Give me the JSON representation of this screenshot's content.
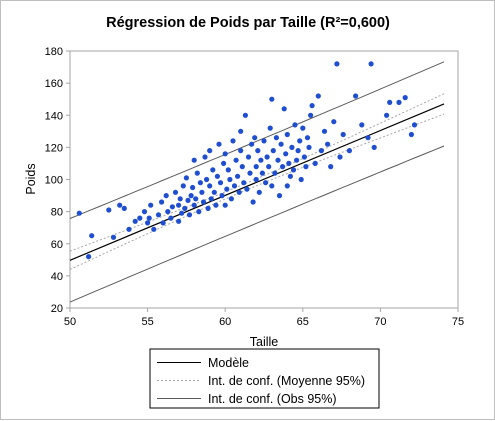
{
  "chart_data": {
    "type": "scatter",
    "title": "Régression de Poids par Taille (R²=0,600)",
    "xlabel": "Taille",
    "ylabel": "Poids",
    "xlim": [
      50,
      75
    ],
    "ylim": [
      20,
      180
    ],
    "xticks": [
      "50",
      "55",
      "60",
      "65",
      "70",
      "75"
    ],
    "yticks": [
      "20",
      "40",
      "60",
      "80",
      "100",
      "120",
      "140",
      "160",
      "180"
    ],
    "grid": false,
    "legend_position": "bottom",
    "colors": {
      "points": "#1f4fd0",
      "model": "#000000",
      "ci_mean": "#a6a6a6",
      "ci_obs": "#595959"
    },
    "model": {
      "intercept": -152.3,
      "slope": 4.04
    },
    "series": [
      {
        "name": "Points",
        "x": [
          50.6,
          51.2,
          51.4,
          52.5,
          52.8,
          53.2,
          53.5,
          53.8,
          54.2,
          54.5,
          54.8,
          55.0,
          55.1,
          55.2,
          55.4,
          55.7,
          55.9,
          56.0,
          56.2,
          56.3,
          56.5,
          56.6,
          56.8,
          57.0,
          57.0,
          57.1,
          57.2,
          57.3,
          57.4,
          57.5,
          57.6,
          57.7,
          57.8,
          57.9,
          58.0,
          58.0,
          58.1,
          58.2,
          58.3,
          58.4,
          58.5,
          58.6,
          58.7,
          58.8,
          58.9,
          59.0,
          59.0,
          59.1,
          59.2,
          59.3,
          59.4,
          59.5,
          59.6,
          59.7,
          59.8,
          59.9,
          60.0,
          60.0,
          60.1,
          60.2,
          60.3,
          60.4,
          60.5,
          60.6,
          60.7,
          60.8,
          60.9,
          61.0,
          61.0,
          61.1,
          61.2,
          61.3,
          61.4,
          61.5,
          61.6,
          61.7,
          61.8,
          61.9,
          62.0,
          62.0,
          62.1,
          62.2,
          62.3,
          62.4,
          62.5,
          62.6,
          62.7,
          62.8,
          62.9,
          63.0,
          63.0,
          63.1,
          63.2,
          63.3,
          63.4,
          63.5,
          63.6,
          63.7,
          63.8,
          63.9,
          64.0,
          64.0,
          64.1,
          64.2,
          64.3,
          64.4,
          64.5,
          64.6,
          64.7,
          64.8,
          64.9,
          65.0,
          65.1,
          65.2,
          65.3,
          65.4,
          65.5,
          65.6,
          65.8,
          66.0,
          66.2,
          66.4,
          66.6,
          66.8,
          67.0,
          67.2,
          67.4,
          67.6,
          68.0,
          68.4,
          68.8,
          69.2,
          69.4,
          69.6,
          70.4,
          70.6,
          71.2,
          71.6,
          72.0,
          72.2
        ],
        "y": [
          79,
          52,
          65,
          81,
          64,
          84,
          82,
          69,
          74,
          76,
          80,
          73,
          76,
          84,
          69,
          78,
          86,
          73,
          90,
          80,
          76,
          83,
          92,
          74,
          84,
          88,
          79,
          96,
          82,
          101,
          87,
          78,
          90,
          95,
          84,
          112,
          88,
          104,
          80,
          98,
          92,
          86,
          114,
          100,
          82,
          96,
          118,
          88,
          106,
          92,
          84,
          102,
          122,
          98,
          90,
          110,
          84,
          116,
          94,
          106,
          100,
          88,
          124,
          96,
          112,
          102,
          92,
          118,
          130,
          108,
          98,
          140,
          94,
          114,
          104,
          122,
          86,
          126,
          100,
          108,
          118,
          92,
          112,
          104,
          124,
          98,
          114,
          108,
          132,
          96,
          150,
          118,
          104,
          126,
          112,
          90,
          122,
          108,
          144,
          116,
          96,
          128,
          110,
          102,
          120,
          106,
          134,
          112,
          118,
          124,
          100,
          132,
          114,
          108,
          126,
          120,
          140,
          146,
          110,
          152,
          118,
          130,
          122,
          108,
          136,
          172,
          114,
          128,
          118,
          152,
          134,
          126,
          172,
          120,
          140,
          148,
          148,
          151,
          128,
          134
        ]
      },
      {
        "name": "Modèle"
      },
      {
        "name": "Int. de conf. (Moyenne 95%)"
      },
      {
        "name": "Int. de conf. (Obs 95%)"
      }
    ]
  }
}
